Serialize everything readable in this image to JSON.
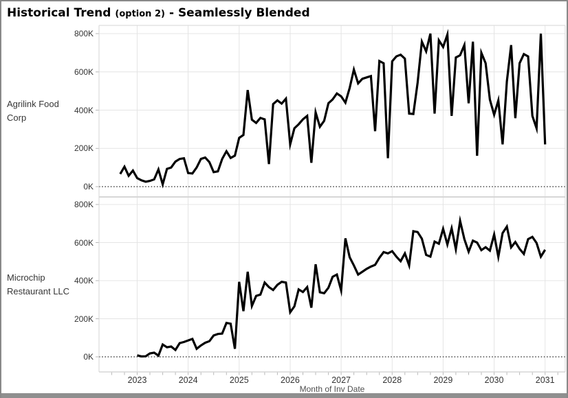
{
  "title": {
    "main": "Historical Trend",
    "option": "(option 2)",
    "subtitle": "- Seamlessly Blended"
  },
  "colors": {
    "line": "#000000",
    "grid": "#e4e4e4",
    "panel_border": "#d6d6d6",
    "zero_line": "#4d4d4d",
    "tick_mark": "#b7b7b7",
    "text": "#333333",
    "frame": "#898989"
  },
  "chart_data": {
    "type": "line",
    "title": "Historical Trend (option 2) - Seamlessly Blended",
    "xlabel": "Month of Inv Date",
    "x_ticks": [
      "2023",
      "2024",
      "2025",
      "2026",
      "2027",
      "2028",
      "2029",
      "2030",
      "2031"
    ],
    "y_ticks": [
      "0K",
      "200K",
      "400K",
      "600K",
      "800K"
    ],
    "y_axis_range_k": [
      0,
      800
    ],
    "grid": true,
    "legend": false,
    "x_minor_tick_interval": "quarter",
    "series": [
      {
        "name": "Agrilink Food Corp",
        "start_month": "2022-09",
        "frequency": "monthly",
        "unit": "thousands",
        "values_k": [
          66,
          104,
          57,
          84,
          45,
          33,
          26,
          30,
          38,
          90,
          12,
          93,
          100,
          131,
          145,
          148,
          71,
          69,
          100,
          145,
          152,
          128,
          76,
          80,
          145,
          185,
          150,
          162,
          255,
          270,
          505,
          350,
          333,
          359,
          352,
          118,
          432,
          451,
          434,
          460,
          221,
          305,
          326,
          352,
          370,
          125,
          388,
          313,
          344,
          436,
          456,
          487,
          472,
          439,
          516,
          612,
          540,
          564,
          571,
          578,
          290,
          657,
          645,
          149,
          655,
          681,
          690,
          669,
          382,
          380,
          543,
          758,
          707,
          800,
          382,
          765,
          730,
          795,
          370,
          675,
          687,
          740,
          436,
          758,
          161,
          700,
          645,
          455,
          376,
          451,
          221,
          550,
          740,
          358,
          645,
          693,
          681,
          370,
          305,
          800,
          221
        ]
      },
      {
        "name": "Microchip Restaurant LLC",
        "start_month": "2023-01",
        "frequency": "monthly",
        "unit": "thousands",
        "values_k": [
          8,
          2,
          3,
          18,
          22,
          6,
          65,
          50,
          54,
          36,
          72,
          78,
          86,
          94,
          42,
          60,
          74,
          82,
          112,
          120,
          122,
          178,
          174,
          42,
          394,
          240,
          447,
          267,
          320,
          327,
          390,
          366,
          351,
          378,
          394,
          390,
          234,
          265,
          354,
          340,
          366,
          258,
          486,
          339,
          334,
          363,
          420,
          432,
          348,
          622,
          523,
          480,
          432,
          447,
          462,
          474,
          483,
          520,
          550,
          543,
          555,
          526,
          502,
          543,
          480,
          660,
          655,
          620,
          535,
          526,
          605,
          594,
          672,
          590,
          675,
          565,
          714,
          618,
          552,
          610,
          600,
          560,
          576,
          558,
          642,
          525,
          650,
          684,
          575,
          603,
          567,
          540,
          618,
          630,
          598,
          526,
          562
        ]
      }
    ]
  }
}
